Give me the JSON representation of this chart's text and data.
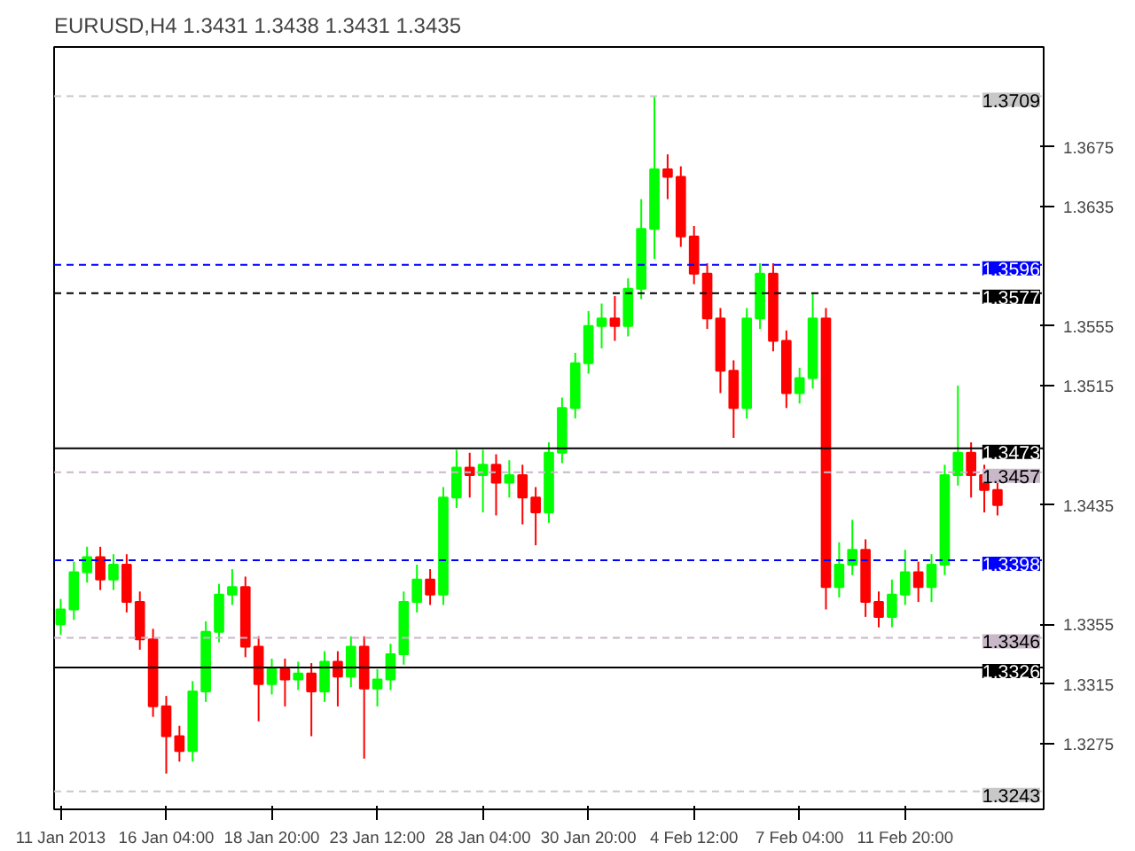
{
  "chart_data": {
    "type": "candlestick",
    "title": "EURUSD,H4  1.3431 1.3438 1.3431 1.3435",
    "categories": [
      "11 Jan 2013",
      null,
      null,
      null,
      null,
      null,
      null,
      null,
      "16 Jan 04:00",
      null,
      null,
      null,
      null,
      null,
      null,
      null,
      "18 Jan 20:00",
      null,
      null,
      null,
      null,
      null,
      null,
      null,
      "23 Jan 12:00",
      null,
      null,
      null,
      null,
      null,
      null,
      null,
      "28 Jan 04:00",
      null,
      null,
      null,
      null,
      null,
      null,
      null,
      "30 Jan 20:00",
      null,
      null,
      null,
      null,
      null,
      null,
      null,
      "4 Feb 12:00",
      null,
      null,
      null,
      null,
      null,
      null,
      null,
      "7 Feb 04:00",
      null,
      null,
      null,
      null,
      null,
      null,
      null,
      "11 Feb 20:00",
      null,
      null,
      null,
      null,
      null,
      null,
      null
    ],
    "ohlc": [
      [
        1.3355,
        1.3372,
        1.3348,
        1.3365
      ],
      [
        1.3365,
        1.3397,
        1.3358,
        1.339
      ],
      [
        1.339,
        1.3407,
        1.3383,
        1.34
      ],
      [
        1.34,
        1.3407,
        1.3378,
        1.3385
      ],
      [
        1.3385,
        1.3402,
        1.3378,
        1.3395
      ],
      [
        1.3395,
        1.3402,
        1.3363,
        1.337
      ],
      [
        1.337,
        1.3377,
        1.3338,
        1.3345
      ],
      [
        1.3345,
        1.3352,
        1.3293,
        1.33
      ],
      [
        1.33,
        1.3307,
        1.3255,
        1.328
      ],
      [
        1.328,
        1.3287,
        1.3263,
        1.327
      ],
      [
        1.327,
        1.3317,
        1.3263,
        1.331
      ],
      [
        1.331,
        1.3357,
        1.3303,
        1.335
      ],
      [
        1.335,
        1.3382,
        1.3343,
        1.3375
      ],
      [
        1.3375,
        1.3392,
        1.3368,
        1.338
      ],
      [
        1.338,
        1.3387,
        1.3333,
        1.334
      ],
      [
        1.334,
        1.3347,
        1.329,
        1.3315
      ],
      [
        1.3315,
        1.3332,
        1.3308,
        1.3325
      ],
      [
        1.3325,
        1.3332,
        1.33,
        1.3318
      ],
      [
        1.3318,
        1.333,
        1.3311,
        1.3322
      ],
      [
        1.3322,
        1.3329,
        1.328,
        1.331
      ],
      [
        1.331,
        1.3337,
        1.3303,
        1.333
      ],
      [
        1.333,
        1.3337,
        1.33,
        1.332
      ],
      [
        1.332,
        1.3347,
        1.3313,
        1.334
      ],
      [
        1.334,
        1.3347,
        1.3265,
        1.3312
      ],
      [
        1.3312,
        1.3325,
        1.33,
        1.3318
      ],
      [
        1.3318,
        1.3342,
        1.3311,
        1.3335
      ],
      [
        1.3335,
        1.3377,
        1.3328,
        1.337
      ],
      [
        1.337,
        1.3395,
        1.3363,
        1.3385
      ],
      [
        1.3385,
        1.3392,
        1.3368,
        1.3375
      ],
      [
        1.3375,
        1.3447,
        1.3368,
        1.344
      ],
      [
        1.344,
        1.3472,
        1.3433,
        1.346
      ],
      [
        1.346,
        1.347,
        1.344,
        1.3455
      ],
      [
        1.3455,
        1.3472,
        1.343,
        1.3462
      ],
      [
        1.3462,
        1.3469,
        1.3428,
        1.345
      ],
      [
        1.345,
        1.3465,
        1.344,
        1.3455
      ],
      [
        1.3455,
        1.3462,
        1.3422,
        1.344
      ],
      [
        1.344,
        1.3447,
        1.3408,
        1.343
      ],
      [
        1.343,
        1.3477,
        1.3423,
        1.347
      ],
      [
        1.347,
        1.3507,
        1.3463,
        1.35
      ],
      [
        1.35,
        1.3537,
        1.3493,
        1.353
      ],
      [
        1.353,
        1.3565,
        1.3523,
        1.3555
      ],
      [
        1.3555,
        1.357,
        1.354,
        1.356
      ],
      [
        1.356,
        1.3575,
        1.3545,
        1.3555
      ],
      [
        1.3555,
        1.3587,
        1.3548,
        1.358
      ],
      [
        1.358,
        1.364,
        1.3573,
        1.362
      ],
      [
        1.362,
        1.3709,
        1.36,
        1.366
      ],
      [
        1.366,
        1.367,
        1.364,
        1.3655
      ],
      [
        1.3655,
        1.3662,
        1.3608,
        1.3615
      ],
      [
        1.3615,
        1.3622,
        1.3583,
        1.359
      ],
      [
        1.359,
        1.3597,
        1.3553,
        1.356
      ],
      [
        1.356,
        1.3567,
        1.351,
        1.3525
      ],
      [
        1.3525,
        1.3532,
        1.348,
        1.35
      ],
      [
        1.35,
        1.3567,
        1.3493,
        1.356
      ],
      [
        1.356,
        1.3597,
        1.3553,
        1.359
      ],
      [
        1.359,
        1.3597,
        1.3538,
        1.3545
      ],
      [
        1.3545,
        1.3552,
        1.35,
        1.351
      ],
      [
        1.351,
        1.3527,
        1.3503,
        1.352
      ],
      [
        1.352,
        1.3577,
        1.3513,
        1.356
      ],
      [
        1.356,
        1.3567,
        1.3365,
        1.338
      ],
      [
        1.338,
        1.341,
        1.3373,
        1.3395
      ],
      [
        1.3395,
        1.3425,
        1.3388,
        1.3405
      ],
      [
        1.3405,
        1.3412,
        1.336,
        1.337
      ],
      [
        1.337,
        1.3377,
        1.3353,
        1.336
      ],
      [
        1.336,
        1.3385,
        1.3353,
        1.3375
      ],
      [
        1.3375,
        1.3405,
        1.3368,
        1.339
      ],
      [
        1.339,
        1.3397,
        1.337,
        1.338
      ],
      [
        1.338,
        1.3402,
        1.337,
        1.3395
      ],
      [
        1.3395,
        1.3462,
        1.3388,
        1.3455
      ],
      [
        1.3455,
        1.3515,
        1.3448,
        1.347
      ],
      [
        1.347,
        1.3477,
        1.344,
        1.3455
      ],
      [
        1.3455,
        1.3462,
        1.343,
        1.3445
      ],
      [
        1.3445,
        1.345,
        1.3428,
        1.3435
      ]
    ],
    "colors": [
      "#00ff00",
      "#00ff00",
      "#00ff00",
      "#ff0000",
      "#00ff00",
      "#ff0000",
      "#ff0000",
      "#ff0000",
      "#ff0000",
      "#ff0000",
      "#00ff00",
      "#00ff00",
      "#00ff00",
      "#00ff00",
      "#ff0000",
      "#ff0000",
      "#00ff00",
      "#ff0000",
      "#00ff00",
      "#ff0000",
      "#00ff00",
      "#ff0000",
      "#00ff00",
      "#ff0000",
      "#00ff00",
      "#00ff00",
      "#00ff00",
      "#00ff00",
      "#ff0000",
      "#00ff00",
      "#00ff00",
      "#ff0000",
      "#00ff00",
      "#ff0000",
      "#00ff00",
      "#ff0000",
      "#ff0000",
      "#00ff00",
      "#00ff00",
      "#00ff00",
      "#00ff00",
      "#00ff00",
      "#ff0000",
      "#00ff00",
      "#00ff00",
      "#00ff00",
      "#ff0000",
      "#ff0000",
      "#ff0000",
      "#ff0000",
      "#ff0000",
      "#ff0000",
      "#00ff00",
      "#00ff00",
      "#ff0000",
      "#ff0000",
      "#00ff00",
      "#00ff00",
      "#ff0000",
      "#00ff00",
      "#00ff00",
      "#ff0000",
      "#ff0000",
      "#00ff00",
      "#00ff00",
      "#ff0000",
      "#00ff00",
      "#00ff00",
      "#00ff00",
      "#ff0000",
      "#ff0000",
      "#ff0000"
    ],
    "ylim": [
      1.3231,
      1.3742
    ],
    "yticks": [
      1.3675,
      1.3635,
      1.3555,
      1.3515,
      1.3435,
      1.3355,
      1.3315,
      1.3275
    ],
    "ref_lines": [
      {
        "axis": "y",
        "value": 1.3709,
        "label": "1.3709",
        "color": "#c8c8c8",
        "line_style": "dashed"
      },
      {
        "axis": "y",
        "value": 1.3596,
        "label": "1.3596",
        "color": "#0000ff",
        "line_style": "dashed"
      },
      {
        "axis": "y",
        "value": 1.3577,
        "label": "1.3577",
        "color": "#000000",
        "line_style": "dashed"
      },
      {
        "axis": "y",
        "value": 1.3473,
        "label": "1.3473",
        "color": "#000000",
        "line_style": "solid"
      },
      {
        "axis": "y",
        "value": 1.3457,
        "label": "1.3457",
        "color": "#c8b8c8",
        "line_style": "dashed"
      },
      {
        "axis": "y",
        "value": 1.3398,
        "label": "1.3398",
        "color": "#0000ff",
        "line_style": "dashed"
      },
      {
        "axis": "y",
        "value": 1.3346,
        "label": "1.3346",
        "color": "#c8b8c8",
        "line_style": "dashed"
      },
      {
        "axis": "y",
        "value": 1.3326,
        "label": "1.3326",
        "color": "#000000",
        "line_style": "solid"
      },
      {
        "axis": "y",
        "value": 1.3243,
        "label": "1.3243",
        "color": "#c8c8c8",
        "line_style": "dashed"
      }
    ],
    "grid": false
  }
}
